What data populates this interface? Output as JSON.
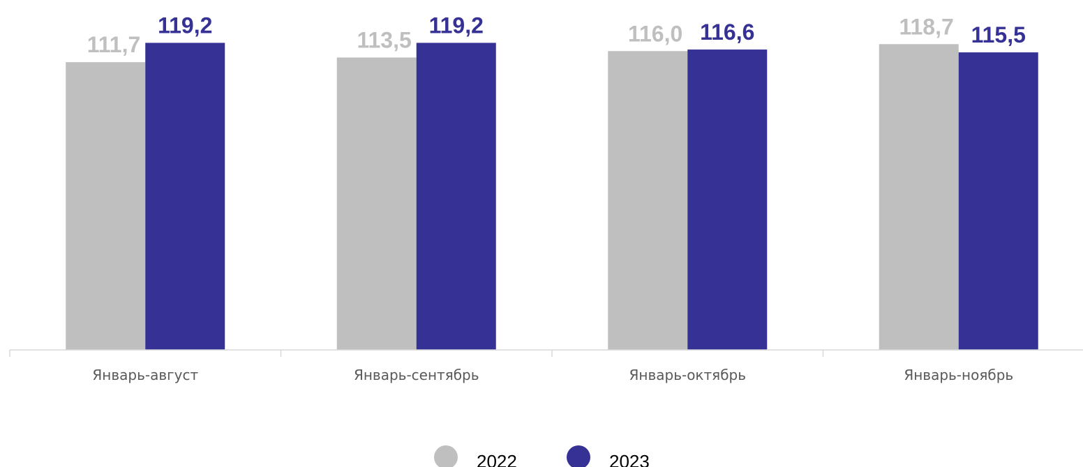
{
  "chart_data": {
    "type": "bar",
    "categories": [
      "Январь-август",
      "Январь-сентябрь",
      "Январь-октябрь",
      "Январь-ноябрь"
    ],
    "series": [
      {
        "name": "2022",
        "values": [
          111.7,
          113.5,
          116.0,
          118.7
        ],
        "labels": [
          "111,7",
          "113,5",
          "116,0",
          "118,7"
        ],
        "color": "#BFBFBF"
      },
      {
        "name": "2023",
        "values": [
          119.2,
          119.2,
          116.6,
          115.5
        ],
        "labels": [
          "119,2",
          "119,2",
          "116,6",
          "115,5"
        ],
        "color": "#363194"
      }
    ],
    "title": "",
    "xlabel": "",
    "ylabel": "",
    "ylim": [
      0,
      120
    ],
    "grid": false,
    "legend": "bottom",
    "axis_color": "#D9D9D9"
  }
}
